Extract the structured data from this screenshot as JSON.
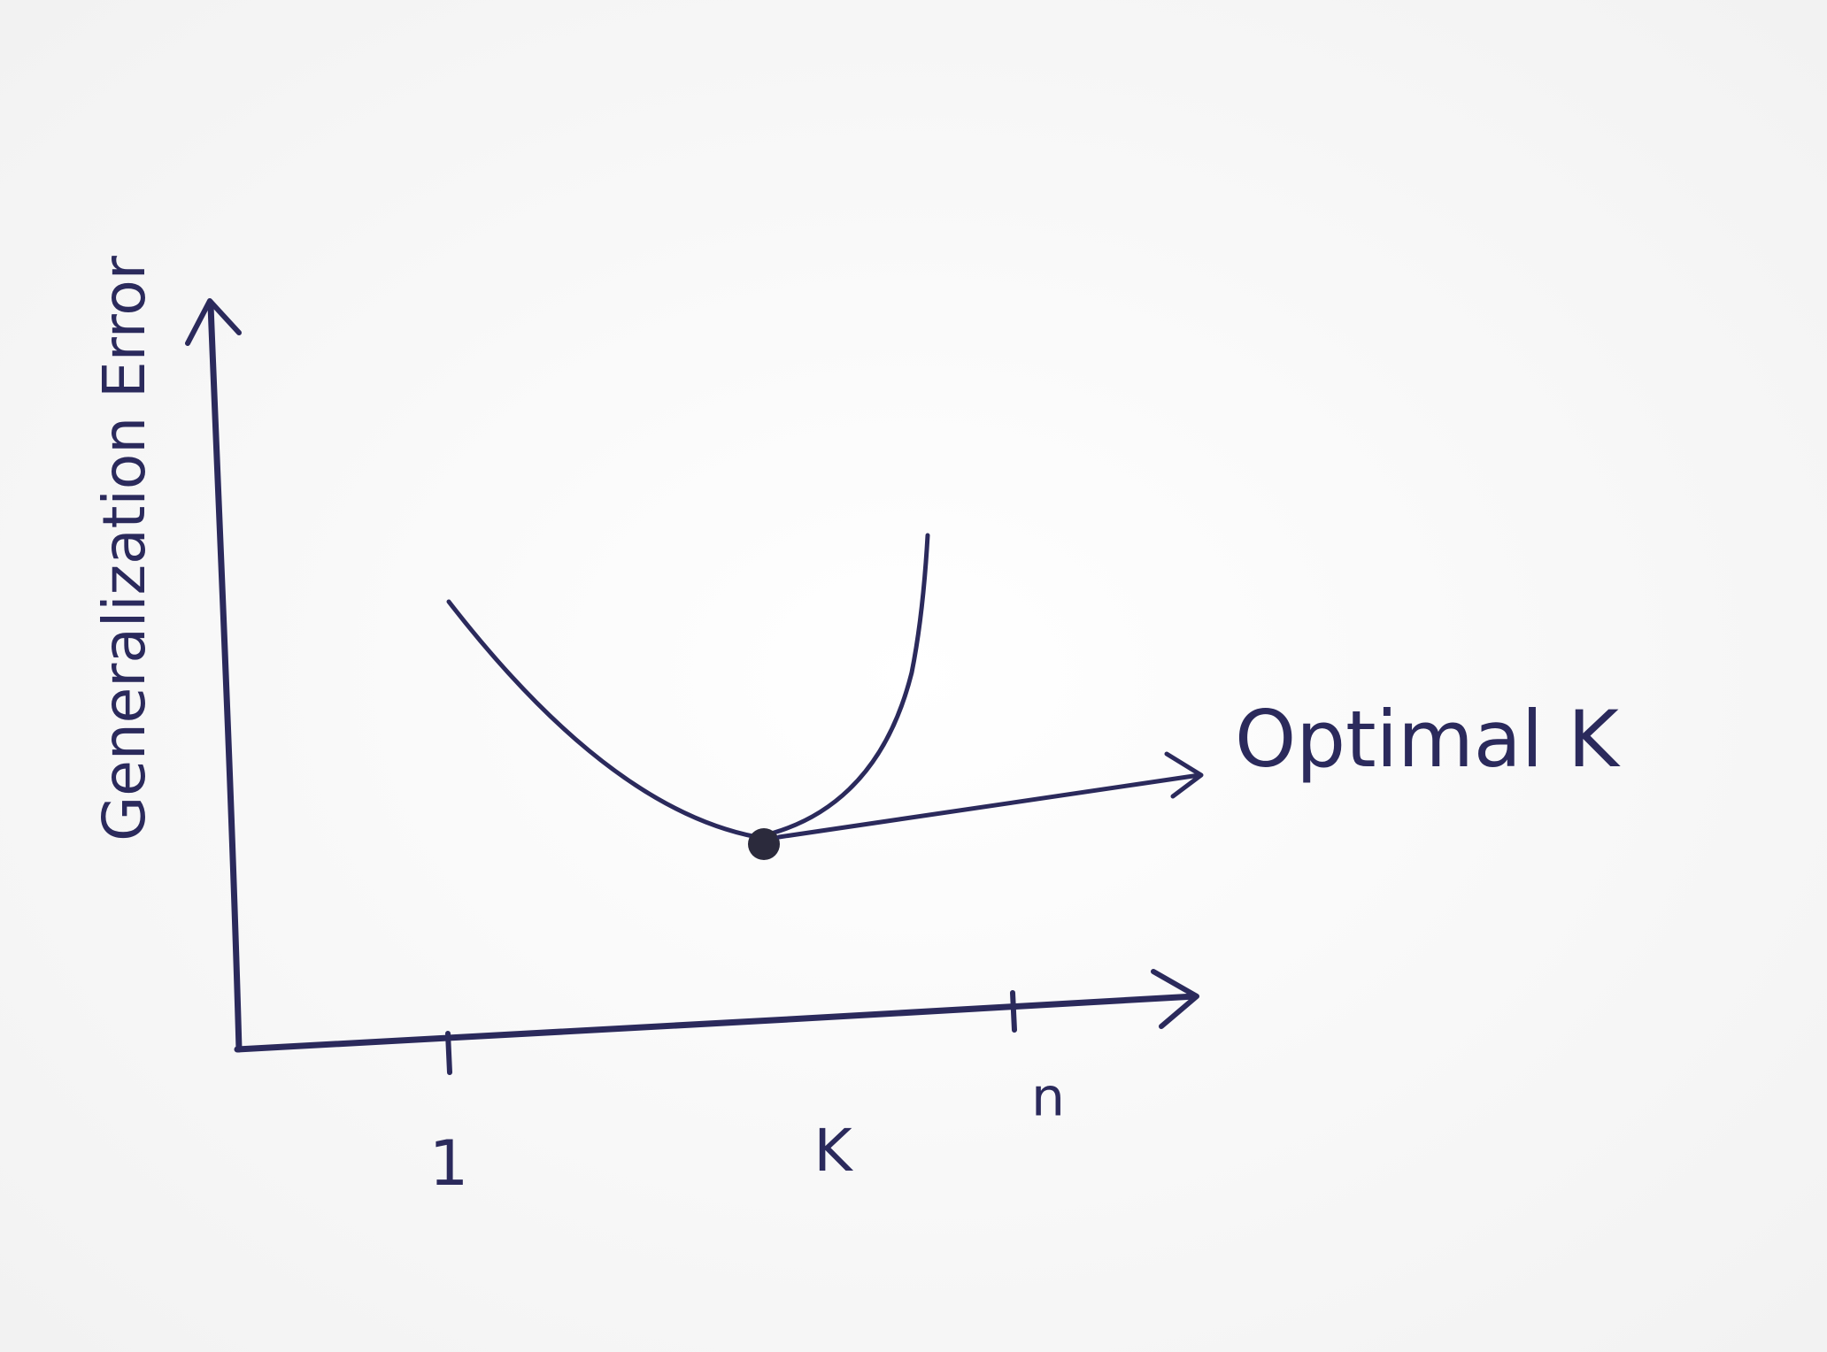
{
  "y_axis_label": "Generalization Error",
  "x_axis_label": "K",
  "x_tick_labels": [
    "1",
    "n"
  ],
  "annotation": "Optimal K"
}
